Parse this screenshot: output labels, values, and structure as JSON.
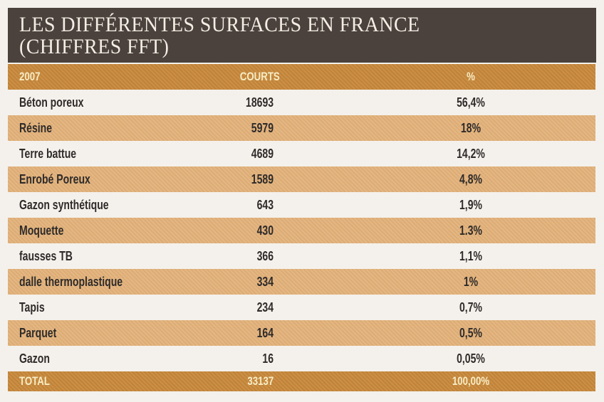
{
  "title": {
    "line1": "LES DIFFÉRENTES SURFACES EN FRANCE",
    "line2": "(CHIFFRES FFT)"
  },
  "table": {
    "header": {
      "name": "2007",
      "courts": "COURTS",
      "pct": "%"
    },
    "rows": [
      {
        "name": "Béton poreux",
        "courts": "18693",
        "pct": "56,4%"
      },
      {
        "name": "Résine",
        "courts": "5979",
        "pct": "18%"
      },
      {
        "name": "Terre battue",
        "courts": "4689",
        "pct": "14,2%"
      },
      {
        "name": "Enrobé Poreux",
        "courts": "1589",
        "pct": "4,8%"
      },
      {
        "name": "Gazon synthétique",
        "courts": "643",
        "pct": "1,9%"
      },
      {
        "name": "Moquette",
        "courts": "430",
        "pct": "1.3%"
      },
      {
        "name": "fausses TB",
        "courts": "366",
        "pct": "1,1%"
      },
      {
        "name": "dalle thermoplastique",
        "courts": "334",
        "pct": "1%"
      },
      {
        "name": "Tapis",
        "courts": "234",
        "pct": "0,7%"
      },
      {
        "name": "Parquet",
        "courts": "164",
        "pct": "0,5%"
      },
      {
        "name": "Gazon",
        "courts": "16",
        "pct": "0,05%"
      }
    ],
    "total": {
      "name": "TOTAL",
      "courts": "33137",
      "pct": "100,00%"
    }
  },
  "colors": {
    "title_bg": "#4b423d",
    "title_text": "#f3ede4",
    "header_bar": "#c8883b",
    "band_row": "#e3b27a",
    "header_text": "#f6ecc4",
    "body_text": "#2e2b2a",
    "page_bg": "#f4f1ec"
  }
}
